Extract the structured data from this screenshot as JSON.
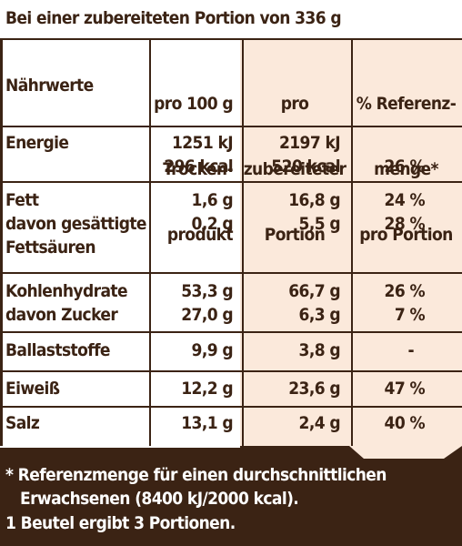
{
  "header": {
    "title": "Bei einer zubereiteten Portion von 336 g"
  },
  "columns": {
    "nutrient": "Nährwerte",
    "per100_l1": "pro 100 g",
    "per100_l2": "Trocken-",
    "per100_l3": "produkt",
    "portion_l1": "pro",
    "portion_l2": "zubereiteter",
    "portion_l3": "Portion",
    "ref_l1": "% Referenz-",
    "ref_l2": "menge*",
    "ref_l3": "pro Portion"
  },
  "rows": {
    "energie": {
      "label": "Energie",
      "p100_kj": "1251 kJ",
      "p100_kcal": "296 kcal",
      "por_kj": "2197 kJ",
      "por_kcal": "520 kcal",
      "ref": "26 %"
    },
    "fett": {
      "label": "Fett",
      "p100": "1,6 g",
      "por": "16,8 g",
      "ref": "24 %"
    },
    "gesfett": {
      "label_l1": "davon gesättigte",
      "label_l2": "Fettsäuren",
      "p100": "0,2 g",
      "por": "5,5 g",
      "ref": "28 %"
    },
    "kh": {
      "label": "Kohlenhydrate",
      "p100": "53,3 g",
      "por": "66,7 g",
      "ref": "26 %"
    },
    "zucker": {
      "label": "davon Zucker",
      "p100": "27,0 g",
      "por": "6,3 g",
      "ref": "7 %"
    },
    "ballast": {
      "label": "Ballaststoffe",
      "p100": "9,9 g",
      "por": "3,8 g",
      "ref": "-"
    },
    "eiweiss": {
      "label": "Eiweiß",
      "p100": "12,2 g",
      "por": "23,6 g",
      "ref": "47 %"
    },
    "salz": {
      "label": "Salz",
      "p100": "13,1 g",
      "por": "2,4 g",
      "ref": "40 %"
    }
  },
  "footer": {
    "line1": "* Referenzmenge für einen durchschnittlichen",
    "line2": "Erwachsenen (8400 kJ/2000 kcal).",
    "line3": "1 Beutel ergibt 3 Portionen."
  },
  "colors": {
    "brown": "#3b2314",
    "cream": "#fbe9db",
    "white": "#ffffff"
  }
}
